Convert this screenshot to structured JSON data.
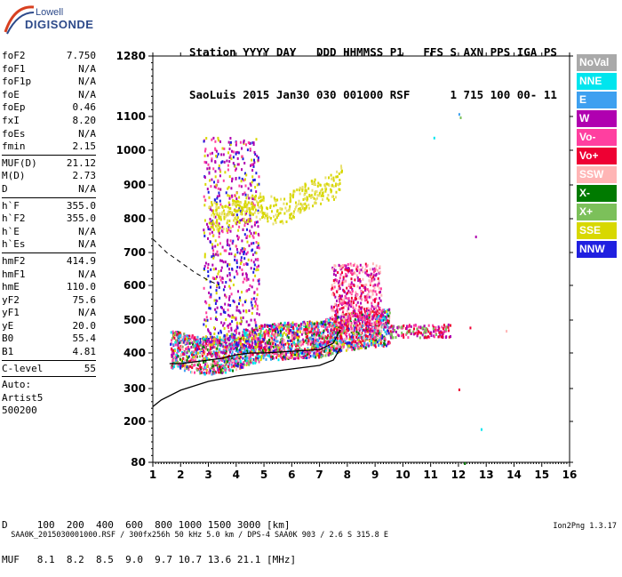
{
  "logo": {
    "line1": "Lowell",
    "line2": "DIGISONDE"
  },
  "header": {
    "row1": "Station YYYY DAY   DDD HHMMSS P1   FFS S AXN PPS IGA PS",
    "row2": "SaoLuis 2015 Jan30 030 001000 RSF      1 715 100 00- 11"
  },
  "params": [
    [
      {
        "k": "foF2",
        "v": "7.750"
      },
      {
        "k": "foF1",
        "v": "N/A"
      },
      {
        "k": "foF1p",
        "v": "N/A"
      },
      {
        "k": "foE",
        "v": "N/A"
      },
      {
        "k": "foEp",
        "v": "0.46"
      },
      {
        "k": "fxI",
        "v": "8.20"
      },
      {
        "k": "foEs",
        "v": "N/A"
      },
      {
        "k": "fmin",
        "v": "2.15"
      }
    ],
    [
      {
        "k": "MUF(D)",
        "v": "21.12"
      },
      {
        "k": "M(D)",
        "v": "2.73"
      },
      {
        "k": "D",
        "v": "N/A"
      }
    ],
    [
      {
        "k": "h`F",
        "v": "355.0"
      },
      {
        "k": "h`F2",
        "v": "355.0"
      },
      {
        "k": "h`E",
        "v": "N/A"
      },
      {
        "k": "h`Es",
        "v": "N/A"
      }
    ],
    [
      {
        "k": "hmF2",
        "v": "414.9"
      },
      {
        "k": "hmF1",
        "v": "N/A"
      },
      {
        "k": "hmE",
        "v": "110.0"
      },
      {
        "k": "yF2",
        "v": "75.6"
      },
      {
        "k": "yF1",
        "v": "N/A"
      },
      {
        "k": "yE",
        "v": "20.0"
      },
      {
        "k": "B0",
        "v": "55.4"
      },
      {
        "k": "B1",
        "v": "4.81"
      }
    ],
    [
      {
        "k": "C-level",
        "v": "55"
      }
    ],
    [
      {
        "k": "Auto:",
        "v": ""
      },
      {
        "k": "Artist5",
        "v": ""
      },
      {
        "k": "500200",
        "v": ""
      }
    ]
  ],
  "legend": [
    {
      "label": "NoVal",
      "color": "#a9a9a9"
    },
    {
      "label": "NNE",
      "color": "#00e5ee"
    },
    {
      "label": "E",
      "color": "#3ea0f0"
    },
    {
      "label": "W",
      "color": "#b000b0"
    },
    {
      "label": "Vo-",
      "color": "#ff3fa0"
    },
    {
      "label": "Vo+",
      "color": "#ee0033"
    },
    {
      "label": "SSW",
      "color": "#ffb5b5"
    },
    {
      "label": "X-",
      "color": "#007a00"
    },
    {
      "label": "X+",
      "color": "#7cc05a"
    },
    {
      "label": "SSE",
      "color": "#d8d800"
    },
    {
      "label": "NNW",
      "color": "#2020e0"
    }
  ],
  "muf_table": {
    "d_row": "D     100  200  400  600  800 1000 1500 3000 [km]",
    "muf_row": "MUF   8.1  8.2  8.5  9.0  9.7 10.7 13.6 21.1 [MHz]"
  },
  "footer": {
    "left": "SAA0K_2015030001000.RSF / 300fx256h 50 kHz 5.0 km / DPS-4 SAA0K 903 / 2.6 S 315.8 E",
    "right": "Ion2Png 1.3.17"
  },
  "chart_data": {
    "type": "scatter",
    "x_ticks": [
      1,
      2,
      3,
      4,
      5,
      6,
      7,
      8,
      9,
      10,
      11,
      12,
      13,
      14,
      15,
      16
    ],
    "y_ticks": [
      80,
      200,
      300,
      400,
      500,
      600,
      700,
      800,
      900,
      1000,
      1100,
      1280
    ],
    "xlim": [
      1,
      16
    ],
    "y_axis": "stepped",
    "grid": false,
    "legend_position": "right",
    "traces": [
      {
        "mode": "O-trace",
        "points": [
          [
            1.6,
            400
          ],
          [
            2.0,
            395
          ],
          [
            2.5,
            385
          ],
          [
            3.0,
            380
          ],
          [
            3.5,
            385
          ],
          [
            4.0,
            395
          ],
          [
            4.5,
            410
          ],
          [
            5.0,
            420
          ],
          [
            6.0,
            425
          ],
          [
            7.0,
            430
          ],
          [
            7.5,
            440
          ],
          [
            8.0,
            450
          ],
          [
            9.0,
            460
          ],
          [
            9.5,
            465
          ]
        ]
      },
      {
        "mode": "X-trace",
        "points": [
          [
            5.5,
            480
          ],
          [
            6.5,
            470
          ],
          [
            7.5,
            460
          ],
          [
            8.5,
            470
          ],
          [
            10.0,
            470
          ],
          [
            11.0,
            470
          ]
        ]
      },
      {
        "mode": "F2 spread",
        "points": [
          [
            3.0,
            820
          ],
          [
            3.5,
            800
          ],
          [
            4.0,
            830
          ],
          [
            5.0,
            840
          ],
          [
            5.5,
            820
          ],
          [
            6.5,
            870
          ],
          [
            7.5,
            900
          ],
          [
            7.8,
            930
          ]
        ]
      }
    ],
    "profile": {
      "true_height": [
        [
          1.0,
          245
        ],
        [
          1.3,
          265
        ],
        [
          2.0,
          295
        ],
        [
          3.0,
          320
        ],
        [
          4.0,
          335
        ],
        [
          5.0,
          345
        ],
        [
          6.0,
          355
        ],
        [
          7.0,
          365
        ],
        [
          7.5,
          380
        ],
        [
          7.75,
          415
        ]
      ],
      "model_dashed": [
        [
          1.0,
          740
        ],
        [
          1.5,
          700
        ],
        [
          2.0,
          670
        ],
        [
          2.5,
          640
        ],
        [
          3.0,
          615
        ],
        [
          3.4,
          600
        ]
      ],
      "trace_fit": [
        [
          1.6,
          370
        ],
        [
          2.0,
          370
        ],
        [
          2.5,
          375
        ],
        [
          3.0,
          380
        ],
        [
          3.5,
          385
        ],
        [
          4.0,
          395
        ],
        [
          4.5,
          400
        ],
        [
          5.0,
          400
        ],
        [
          6.0,
          405
        ],
        [
          7.0,
          410
        ],
        [
          7.5,
          430
        ],
        [
          7.75,
          470
        ]
      ]
    }
  }
}
